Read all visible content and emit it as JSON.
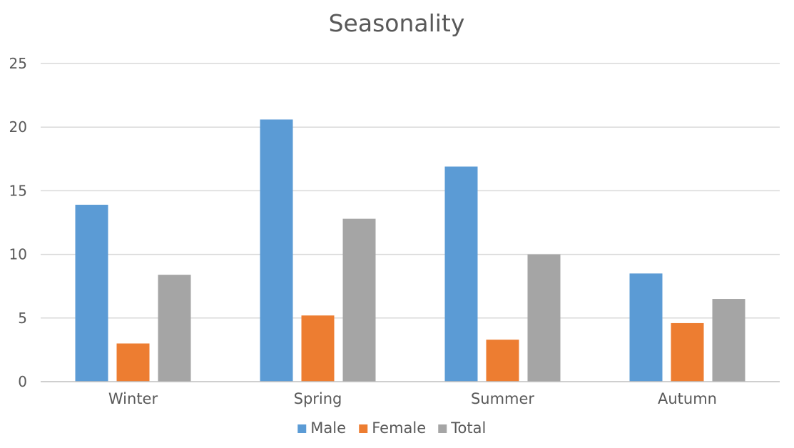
{
  "chart_data": {
    "type": "bar",
    "title": "Seasonality",
    "xlabel": "",
    "ylabel": "",
    "categories": [
      "Winter",
      "Spring",
      "Summer",
      "Autumn"
    ],
    "series": [
      {
        "name": "Male",
        "color": "#5b9bd5",
        "values": [
          13.9,
          20.6,
          16.9,
          8.5
        ]
      },
      {
        "name": "Female",
        "color": "#ed7d31",
        "values": [
          3.0,
          5.2,
          3.3,
          4.6
        ]
      },
      {
        "name": "Total",
        "color": "#a5a5a5",
        "values": [
          8.4,
          12.8,
          10.0,
          6.5
        ]
      }
    ],
    "ylim": [
      0,
      25
    ],
    "yticks": [
      "0",
      "5",
      "10",
      "15",
      "20",
      "25"
    ],
    "grid": true,
    "legend_position": "bottom"
  }
}
